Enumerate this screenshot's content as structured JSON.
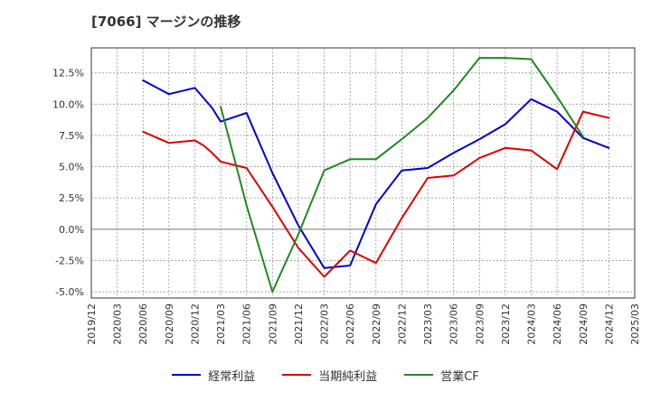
{
  "title": "[7066]  マージンの推移",
  "colors": {
    "blue": "#0000cc",
    "red": "#dd0000",
    "green": "#228822",
    "grid": "#999999",
    "axis": "#333333",
    "zero": "#777777"
  },
  "chart_data": {
    "type": "line",
    "title": "[7066]  マージンの推移",
    "xlabel": "",
    "ylabel": "",
    "x_ticks": [
      "2019/12",
      "2020/03",
      "2020/06",
      "2020/09",
      "2020/12",
      "2021/03",
      "2021/06",
      "2021/09",
      "2021/12",
      "2022/03",
      "2022/06",
      "2022/09",
      "2022/12",
      "2023/03",
      "2023/06",
      "2023/09",
      "2023/12",
      "2024/03",
      "2024/06",
      "2024/09",
      "2024/12",
      "2025/03"
    ],
    "y_ticks": [
      12.5,
      10.0,
      7.5,
      5.0,
      2.5,
      0.0,
      -2.5,
      -5.0
    ],
    "y_tick_labels": [
      "12.5%",
      "10.0%",
      "7.5%",
      "5.0%",
      "2.5%",
      "0.0%",
      "-2.5%",
      "-5.0%"
    ],
    "ylim": [
      -5.5,
      14.5
    ],
    "grid": true,
    "legend_position": "bottom",
    "series": [
      {
        "name": "経常利益",
        "color": "#0000cc",
        "points": [
          [
            "2020/06",
            11.9
          ],
          [
            "2020/09",
            10.8
          ],
          [
            "2020/12",
            11.3
          ],
          [
            "2021/01",
            10.5
          ],
          [
            "2021/02",
            9.7
          ],
          [
            "2021/03",
            8.6
          ],
          [
            "2021/06",
            9.3
          ],
          [
            "2021/09",
            4.5
          ],
          [
            "2021/12",
            0.3
          ],
          [
            "2022/03",
            -3.1
          ],
          [
            "2022/06",
            -2.9
          ],
          [
            "2022/09",
            2.0
          ],
          [
            "2022/12",
            4.7
          ],
          [
            "2023/03",
            4.9
          ],
          [
            "2023/06",
            6.1
          ],
          [
            "2023/09",
            7.2
          ],
          [
            "2023/12",
            8.4
          ],
          [
            "2024/03",
            10.4
          ],
          [
            "2024/06",
            9.4
          ],
          [
            "2024/09",
            7.3
          ],
          [
            "2024/12",
            6.5
          ]
        ]
      },
      {
        "name": "当期純利益",
        "color": "#dd0000",
        "points": [
          [
            "2020/06",
            7.8
          ],
          [
            "2020/09",
            6.9
          ],
          [
            "2020/12",
            7.1
          ],
          [
            "2021/01",
            6.7
          ],
          [
            "2021/02",
            6.1
          ],
          [
            "2021/03",
            5.4
          ],
          [
            "2021/06",
            4.9
          ],
          [
            "2021/09",
            1.8
          ],
          [
            "2021/12",
            -1.5
          ],
          [
            "2022/03",
            -3.8
          ],
          [
            "2022/06",
            -1.7
          ],
          [
            "2022/09",
            -2.7
          ],
          [
            "2022/12",
            0.9
          ],
          [
            "2023/03",
            4.1
          ],
          [
            "2023/06",
            4.3
          ],
          [
            "2023/09",
            5.7
          ],
          [
            "2023/12",
            6.5
          ],
          [
            "2024/03",
            6.3
          ],
          [
            "2024/06",
            4.8
          ],
          [
            "2024/09",
            9.4
          ],
          [
            "2024/12",
            8.9
          ]
        ]
      },
      {
        "name": "営業CF",
        "color": "#228822",
        "points": [
          [
            "2021/03",
            9.8
          ],
          [
            "2021/06",
            1.9
          ],
          [
            "2021/09",
            -5.0
          ],
          [
            "2021/12",
            -0.4
          ],
          [
            "2022/03",
            4.7
          ],
          [
            "2022/06",
            5.6
          ],
          [
            "2022/09",
            5.6
          ],
          [
            "2022/12",
            7.2
          ],
          [
            "2023/03",
            8.9
          ],
          [
            "2023/06",
            11.1
          ],
          [
            "2023/09",
            13.7
          ],
          [
            "2023/12",
            13.7
          ],
          [
            "2024/03",
            13.6
          ],
          [
            "2024/06",
            10.6
          ],
          [
            "2024/09",
            7.4
          ]
        ]
      }
    ]
  }
}
